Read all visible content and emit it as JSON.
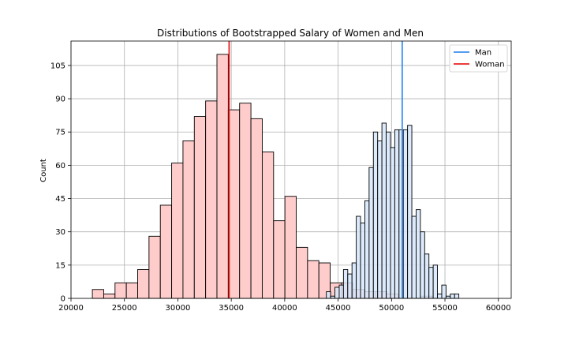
{
  "chart_data": {
    "type": "histogram",
    "title": "Distributions of Bootstrapped Salary of Women and Men",
    "xlabel": "",
    "ylabel": "Count",
    "xlim": [
      20000,
      61200
    ],
    "ylim": [
      0,
      116
    ],
    "xticks": [
      20000,
      25000,
      30000,
      35000,
      40000,
      45000,
      50000,
      55000,
      60000
    ],
    "yticks": [
      0,
      15,
      30,
      45,
      60,
      75,
      90,
      105
    ],
    "grid": true,
    "legend_position": "top-right",
    "legend": [
      {
        "label": "Man",
        "color": "#3b8ff0"
      },
      {
        "label": "Woman",
        "color": "#e8201e"
      }
    ],
    "series": [
      {
        "name": "Woman",
        "fill": "#ffcccc",
        "edge": "#000000",
        "bins": [
          {
            "x0": 22000,
            "x1": 23060,
            "count": 4
          },
          {
            "x0": 23060,
            "x1": 24120,
            "count": 2
          },
          {
            "x0": 24120,
            "x1": 25180,
            "count": 7
          },
          {
            "x0": 25180,
            "x1": 26240,
            "count": 7
          },
          {
            "x0": 26240,
            "x1": 27300,
            "count": 13
          },
          {
            "x0": 27300,
            "x1": 28360,
            "count": 28
          },
          {
            "x0": 28360,
            "x1": 29420,
            "count": 42
          },
          {
            "x0": 29420,
            "x1": 30480,
            "count": 61
          },
          {
            "x0": 30480,
            "x1": 31540,
            "count": 71
          },
          {
            "x0": 31540,
            "x1": 32600,
            "count": 82
          },
          {
            "x0": 32600,
            "x1": 33660,
            "count": 89
          },
          {
            "x0": 33660,
            "x1": 34720,
            "count": 110
          },
          {
            "x0": 34720,
            "x1": 35780,
            "count": 85
          },
          {
            "x0": 35780,
            "x1": 36840,
            "count": 88
          },
          {
            "x0": 36840,
            "x1": 37900,
            "count": 81
          },
          {
            "x0": 37900,
            "x1": 38960,
            "count": 66
          },
          {
            "x0": 38960,
            "x1": 40020,
            "count": 35
          },
          {
            "x0": 40020,
            "x1": 41080,
            "count": 46
          },
          {
            "x0": 41080,
            "x1": 42140,
            "count": 23
          },
          {
            "x0": 42140,
            "x1": 43200,
            "count": 17
          },
          {
            "x0": 43200,
            "x1": 44260,
            "count": 16
          },
          {
            "x0": 44260,
            "x1": 45320,
            "count": 7
          },
          {
            "x0": 45320,
            "x1": 46380,
            "count": 7
          },
          {
            "x0": 46380,
            "x1": 47440,
            "count": 4
          },
          {
            "x0": 47440,
            "x1": 48500,
            "count": 3
          },
          {
            "x0": 48500,
            "x1": 49560,
            "count": 3
          },
          {
            "x0": 49560,
            "x1": 50620,
            "count": 2
          },
          {
            "x0": 52740,
            "x1": 53800,
            "count": 1
          }
        ],
        "mean": 34800
      },
      {
        "name": "Man",
        "fill": "#d6e6fa",
        "edge": "#000000",
        "bins": [
          {
            "x0": 43900,
            "x1": 44300,
            "count": 3
          },
          {
            "x0": 44300,
            "x1": 44700,
            "count": 1
          },
          {
            "x0": 44700,
            "x1": 45100,
            "count": 5
          },
          {
            "x0": 45100,
            "x1": 45500,
            "count": 6
          },
          {
            "x0": 45500,
            "x1": 45900,
            "count": 13
          },
          {
            "x0": 45900,
            "x1": 46300,
            "count": 11
          },
          {
            "x0": 46300,
            "x1": 46700,
            "count": 16
          },
          {
            "x0": 46700,
            "x1": 47100,
            "count": 37
          },
          {
            "x0": 47100,
            "x1": 47500,
            "count": 34
          },
          {
            "x0": 47500,
            "x1": 47900,
            "count": 44
          },
          {
            "x0": 47900,
            "x1": 48300,
            "count": 59
          },
          {
            "x0": 48300,
            "x1": 48700,
            "count": 75
          },
          {
            "x0": 48700,
            "x1": 49100,
            "count": 71
          },
          {
            "x0": 49100,
            "x1": 49500,
            "count": 79
          },
          {
            "x0": 49500,
            "x1": 49900,
            "count": 75
          },
          {
            "x0": 49900,
            "x1": 50300,
            "count": 68
          },
          {
            "x0": 50300,
            "x1": 50700,
            "count": 76
          },
          {
            "x0": 50700,
            "x1": 51100,
            "count": 76
          },
          {
            "x0": 51100,
            "x1": 51500,
            "count": 76
          },
          {
            "x0": 51500,
            "x1": 51900,
            "count": 78
          },
          {
            "x0": 51900,
            "x1": 52300,
            "count": 37
          },
          {
            "x0": 52300,
            "x1": 52700,
            "count": 40
          },
          {
            "x0": 52700,
            "x1": 53100,
            "count": 30
          },
          {
            "x0": 53100,
            "x1": 53500,
            "count": 20
          },
          {
            "x0": 53500,
            "x1": 53900,
            "count": 14
          },
          {
            "x0": 53900,
            "x1": 54300,
            "count": 15
          },
          {
            "x0": 54300,
            "x1": 54700,
            "count": 2
          },
          {
            "x0": 54700,
            "x1": 55100,
            "count": 6
          },
          {
            "x0": 55100,
            "x1": 55500,
            "count": 1
          },
          {
            "x0": 55500,
            "x1": 55900,
            "count": 2
          },
          {
            "x0": 55900,
            "x1": 56300,
            "count": 2
          }
        ],
        "mean": 51000
      }
    ]
  }
}
